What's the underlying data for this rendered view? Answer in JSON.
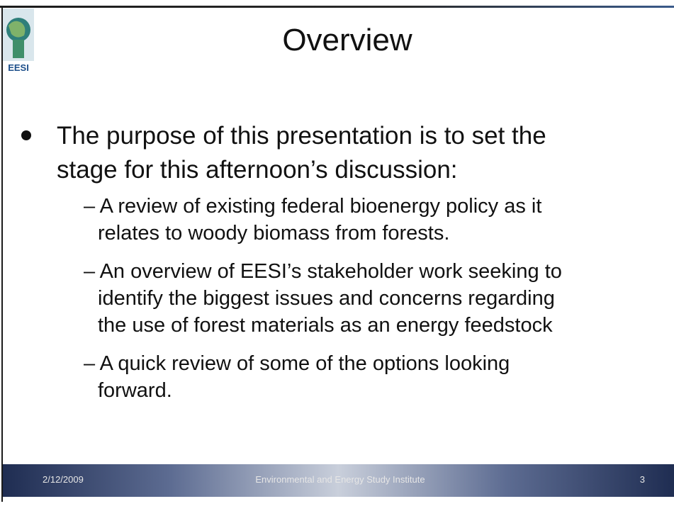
{
  "logo": {
    "text": "EESI"
  },
  "title": "Overview",
  "bullets": [
    {
      "lines": [
        "The purpose of this presentation is to set the",
        "stage for this afternoon’s discussion:"
      ],
      "subitems": [
        {
          "lines": [
            "– A review of existing federal bioenergy policy as it",
            "relates to woody biomass from forests."
          ]
        },
        {
          "lines": [
            "– An overview of EESI’s stakeholder work seeking to",
            "identify the biggest issues and concerns regarding",
            "the use of forest materials as an energy feedstock"
          ]
        },
        {
          "lines": [
            "–  A quick review of some of the options looking",
            "forward."
          ]
        }
      ]
    }
  ],
  "footer": {
    "date": "2/12/2009",
    "organization": "Environmental and Energy Study Institute",
    "page": "3"
  }
}
